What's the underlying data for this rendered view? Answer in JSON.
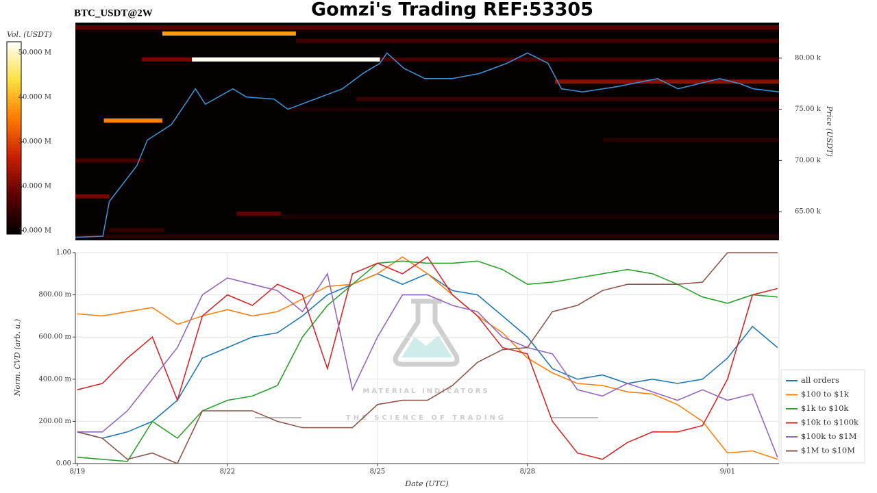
{
  "chart_data": [
    {
      "type": "heatmap",
      "title": "Gomzi's Trading REF:53305",
      "subtitle": "BTC_USDT@2W",
      "ylabel": "Price (USDT)",
      "clabel": "Vol. (USDT)",
      "xlim": [
        -0.04,
        14.03
      ],
      "ylim": [
        62200,
        83470
      ],
      "yticks": [
        {
          "value": 65000,
          "label": "65.00 k"
        },
        {
          "value": 70000,
          "label": "70.00 k"
        },
        {
          "value": 75000,
          "label": "75.00 k"
        },
        {
          "value": 80000,
          "label": "80.00 k"
        }
      ],
      "clim": [
        9200000,
        52500000
      ],
      "cticks": [
        {
          "value": 10000000,
          "label": "10.000 M"
        },
        {
          "value": 20000000,
          "label": "20.000 M"
        },
        {
          "value": 30000000,
          "label": "30.000 M"
        },
        {
          "value": 40000000,
          "label": "40.000 M"
        },
        {
          "value": 50000000,
          "label": "50.000 M"
        }
      ],
      "colormap": [
        "#000000",
        "#5a0000",
        "#c81e00",
        "#ff7a00",
        "#ffe040",
        "#ffffff"
      ],
      "bands": [
        {
          "x": [
            -0.04,
            14.03
          ],
          "y": 83000,
          "value": 18000000
        },
        {
          "x": [
            4.37,
            14.03
          ],
          "y": 81700,
          "value": 15000000
        },
        {
          "x": [
            1.29,
            2.29
          ],
          "y": 79870,
          "value": 20000000
        },
        {
          "x": [
            6.05,
            14.03
          ],
          "y": 79870,
          "value": 16000000
        },
        {
          "x": [
            9.55,
            14.03
          ],
          "y": 77700,
          "value": 22000000
        },
        {
          "x": [
            5.58,
            14.03
          ],
          "y": 76000,
          "value": 15000000
        },
        {
          "x": [
            4.21,
            14.03
          ],
          "y": 75000,
          "value": 12000000
        },
        {
          "x": [
            10.51,
            14.03
          ],
          "y": 72000,
          "value": 13000000
        },
        {
          "x": [
            -0.04,
            1.33
          ],
          "y": 70000,
          "value": 16000000
        },
        {
          "x": [
            -0.04,
            0.64
          ],
          "y": 66500,
          "value": 20000000
        },
        {
          "x": [
            3.18,
            4.07
          ],
          "y": 64800,
          "value": 18000000
        },
        {
          "x": [
            4.07,
            14.03
          ],
          "y": 64500,
          "value": 12000000
        },
        {
          "x": [
            0.64,
            1.74
          ],
          "y": 63200,
          "value": 14000000
        },
        {
          "x": [
            -0.04,
            14.03
          ],
          "y": 62600,
          "value": 13000000
        },
        {
          "x": [
            1.7,
            4.37
          ],
          "y": 82400,
          "value": 38000000
        },
        {
          "x": [
            0.53,
            1.7
          ],
          "y": 73900,
          "value": 36000000
        },
        {
          "x": [
            2.29,
            6.05
          ],
          "y": 79870,
          "value": 52000000
        }
      ],
      "line_color": "#3a8fd0",
      "x": [
        -0.04,
        0.51,
        0.64,
        1.19,
        1.4,
        1.88,
        2.36,
        2.56,
        3.11,
        3.38,
        3.93,
        4.21,
        4.75,
        5.3,
        5.71,
        6.05,
        6.19,
        6.53,
        6.95,
        7.49,
        8.04,
        8.59,
        9.0,
        9.41,
        9.68,
        10.1,
        10.78,
        11.6,
        12.01,
        12.84,
        13.25,
        13.52,
        14.03
      ],
      "values": [
        62500,
        62600,
        66000,
        69500,
        72000,
        73500,
        77000,
        75500,
        77000,
        76200,
        76000,
        75000,
        76000,
        77000,
        78500,
        79500,
        80500,
        79000,
        78000,
        78000,
        78500,
        79500,
        80500,
        79500,
        77000,
        76700,
        77200,
        78000,
        77000,
        78000,
        77500,
        77000,
        76700
      ]
    },
    {
      "type": "line",
      "xlabel": "Date (UTC)",
      "ylabel": "Norm. CVD (arb. u.)",
      "annotations": [
        "MATERIAL INDICATORS",
        "THE SCIENCE OF TRADING"
      ],
      "xlim": [
        -0.04,
        14.03
      ],
      "ylim": [
        0,
        1
      ],
      "xticks": [
        {
          "value": 0,
          "label": "8/19"
        },
        {
          "value": 3,
          "label": "8/22"
        },
        {
          "value": 6,
          "label": "8/25"
        },
        {
          "value": 9,
          "label": "8/28"
        },
        {
          "value": 13,
          "label": "9/01"
        }
      ],
      "yticks": [
        {
          "value": 0,
          "label": "0.00"
        },
        {
          "value": 0.2,
          "label": "200.00 m"
        },
        {
          "value": 0.4,
          "label": "400.00 m"
        },
        {
          "value": 0.6,
          "label": "600.00 m"
        },
        {
          "value": 0.8,
          "label": "800.00 m"
        },
        {
          "value": 1,
          "label": "1.00"
        }
      ],
      "grid": true,
      "legend": "right",
      "x": [
        0,
        0.5,
        1,
        1.5,
        2,
        2.5,
        3,
        3.5,
        4,
        4.5,
        5,
        5.5,
        6,
        6.5,
        7,
        7.5,
        8,
        8.5,
        9,
        9.5,
        10,
        10.5,
        11,
        11.5,
        12,
        12.5,
        13,
        13.5,
        14
      ],
      "series": [
        {
          "name": "all orders",
          "color": "#1f77b4",
          "values": [
            0.15,
            0.12,
            0.15,
            0.2,
            0.3,
            0.5,
            0.55,
            0.6,
            0.62,
            0.7,
            0.8,
            0.85,
            0.9,
            0.85,
            0.9,
            0.82,
            0.8,
            0.7,
            0.6,
            0.45,
            0.4,
            0.42,
            0.38,
            0.4,
            0.38,
            0.4,
            0.5,
            0.65,
            0.55
          ]
        },
        {
          "name": "$100 to $1k",
          "color": "#ff7f0e",
          "values": [
            0.71,
            0.7,
            0.72,
            0.74,
            0.66,
            0.7,
            0.73,
            0.7,
            0.72,
            0.78,
            0.84,
            0.85,
            0.9,
            0.98,
            0.9,
            0.8,
            0.7,
            0.62,
            0.5,
            0.43,
            0.38,
            0.37,
            0.34,
            0.33,
            0.28,
            0.2,
            0.05,
            0.06,
            0.02
          ]
        },
        {
          "name": "$1k to $10k",
          "color": "#2ca02c",
          "values": [
            0.03,
            0.02,
            0.01,
            0.2,
            0.12,
            0.25,
            0.3,
            0.32,
            0.37,
            0.6,
            0.75,
            0.85,
            0.95,
            0.96,
            0.95,
            0.95,
            0.96,
            0.92,
            0.85,
            0.86,
            0.88,
            0.9,
            0.92,
            0.9,
            0.85,
            0.79,
            0.76,
            0.8,
            0.79
          ]
        },
        {
          "name": "$10k to $100k",
          "color": "#d62728",
          "values": [
            0.35,
            0.38,
            0.5,
            0.6,
            0.3,
            0.7,
            0.8,
            0.75,
            0.85,
            0.8,
            0.45,
            0.9,
            0.95,
            0.9,
            0.98,
            0.8,
            0.7,
            0.55,
            0.52,
            0.2,
            0.05,
            0.02,
            0.1,
            0.15,
            0.15,
            0.18,
            0.4,
            0.8,
            0.83
          ]
        },
        {
          "name": "$100k to $1M",
          "color": "#9467bd",
          "values": [
            0.15,
            0.15,
            0.25,
            0.4,
            0.55,
            0.8,
            0.88,
            0.85,
            0.82,
            0.72,
            0.9,
            0.35,
            0.6,
            0.8,
            0.8,
            0.75,
            0.72,
            0.6,
            0.55,
            0.52,
            0.35,
            0.32,
            0.38,
            0.34,
            0.3,
            0.35,
            0.3,
            0.33,
            0.03
          ]
        },
        {
          "name": "$1M to $10M",
          "color": "#8c564b",
          "values": [
            0.15,
            0.12,
            0.02,
            0.05,
            0,
            0.25,
            0.25,
            0.25,
            0.2,
            0.17,
            0.17,
            0.17,
            0.28,
            0.3,
            0.3,
            0.37,
            0.48,
            0.54,
            0.55,
            0.72,
            0.75,
            0.82,
            0.85,
            0.85,
            0.85,
            0.86,
            1,
            1,
            1
          ]
        }
      ]
    }
  ]
}
